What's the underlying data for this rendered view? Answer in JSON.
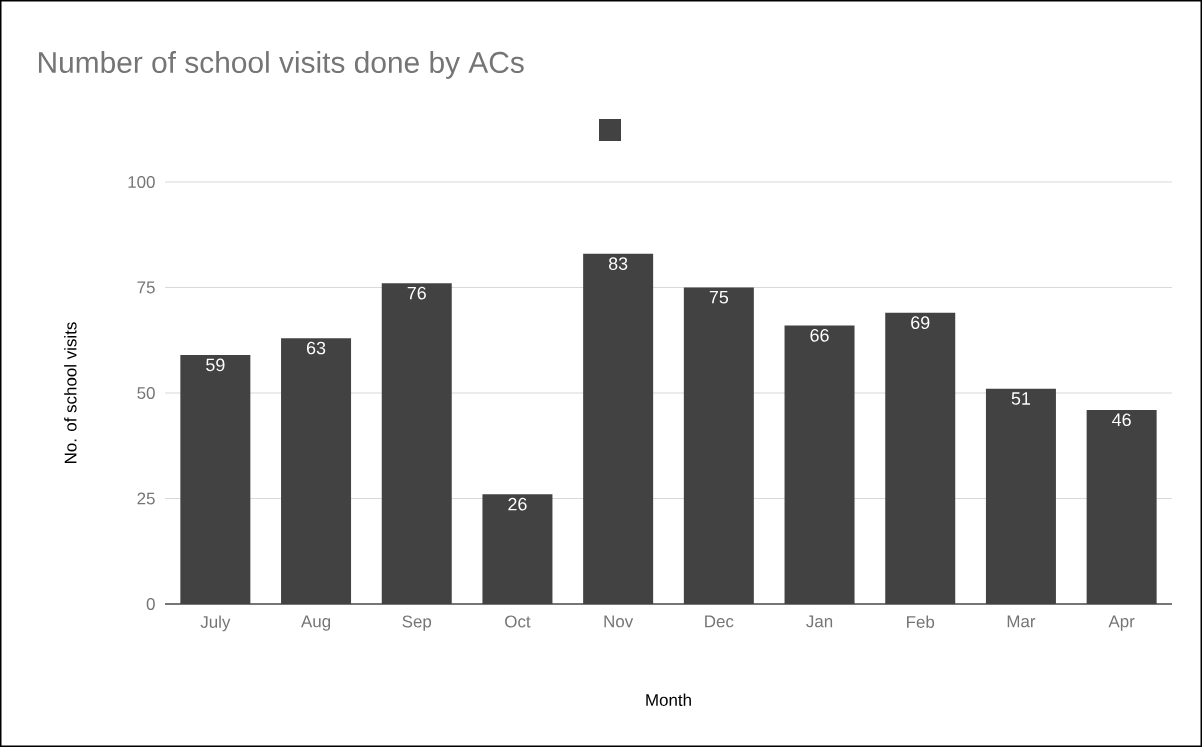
{
  "chart_data": {
    "type": "bar",
    "title": "Number of school visits done by ACs",
    "xlabel": "Month",
    "ylabel": "No. of school visits",
    "categories": [
      "July",
      "Aug",
      "Sep",
      "Oct",
      "Nov",
      "Dec",
      "Jan",
      "Feb",
      "Mar",
      "Apr"
    ],
    "values": [
      59,
      63,
      76,
      26,
      83,
      75,
      66,
      69,
      51,
      46
    ],
    "color": "#424242",
    "ylim": [
      0,
      100
    ],
    "yticks": [
      0,
      25,
      50,
      75,
      100
    ],
    "grid": "y",
    "data_labels": true
  }
}
